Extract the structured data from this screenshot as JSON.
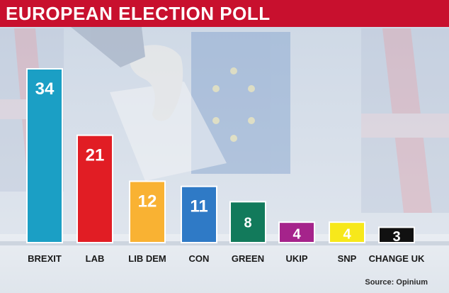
{
  "title": "EUROPEAN ELECTION POLL",
  "source": "Source: Opinium",
  "colors": {
    "title_bg": "#c8102e",
    "bar_outline": "#ffffff",
    "value_text": "#ffffff",
    "label_text": "#1a1a1a"
  },
  "chart_data": {
    "type": "bar",
    "title": "EUROPEAN ELECTION POLL",
    "categories": [
      "BREXIT",
      "LAB",
      "LIB DEM",
      "CON",
      "GREEN",
      "UKIP",
      "SNP",
      "CHANGE UK"
    ],
    "values": [
      34,
      21,
      12,
      11,
      8,
      4,
      4,
      3
    ],
    "bar_colors": [
      "#1b9fc5",
      "#e11d24",
      "#f9b233",
      "#2f7ac6",
      "#127a5b",
      "#a5238b",
      "#f7e81b",
      "#111111"
    ],
    "value_label_colors": [
      "#ffffff",
      "#ffffff",
      "#ffffff",
      "#ffffff",
      "#ffffff",
      "#ffffff",
      "#ffffff",
      "#ffffff"
    ],
    "xlabel": "",
    "ylabel": "",
    "ylim": [
      0,
      34
    ],
    "grid": false,
    "legend": "none",
    "data_labels": true
  }
}
